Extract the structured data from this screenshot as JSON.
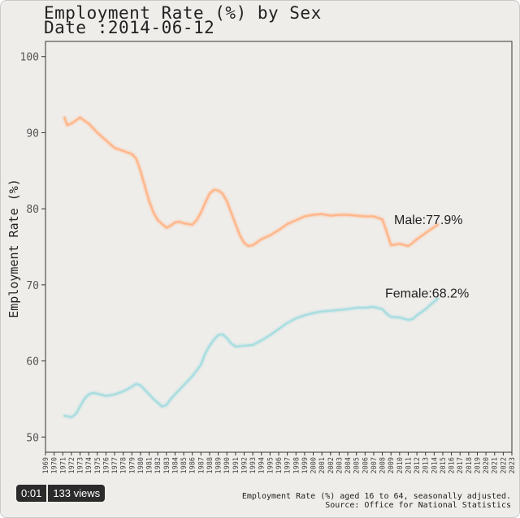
{
  "video": {
    "time": "0:01",
    "views": "133 views"
  },
  "footnote": {
    "line1": "Employment Rate (%) aged 16 to 64, seasonally adjusted.",
    "line2": "Source: Office for National Statistics"
  },
  "chart_data": {
    "type": "line",
    "title": "Employment Rate (%) by Sex",
    "subtitle": "Date :2014-06-12",
    "xlabel": "",
    "ylabel": "Employment Rate (%)",
    "xlim": [
      1969,
      2023
    ],
    "ylim": [
      48,
      102
    ],
    "yticks": [
      50,
      60,
      70,
      80,
      90,
      100
    ],
    "xticks": [
      "1969",
      "1970",
      "1971",
      "1972",
      "1973",
      "1974",
      "1975",
      "1976",
      "1977",
      "1978",
      "1979",
      "1980",
      "1981",
      "1982",
      "1983",
      "1984",
      "1985",
      "1986",
      "1987",
      "1988",
      "1989",
      "1990",
      "1991",
      "1992",
      "1993",
      "1994",
      "1995",
      "1996",
      "1997",
      "1998",
      "1999",
      "2000",
      "2001",
      "2002",
      "2003",
      "2004",
      "2005",
      "2006",
      "2007",
      "2008",
      "2009",
      "2010",
      "2011",
      "2012",
      "2013",
      "2014",
      "2015",
      "2016",
      "2017",
      "2018",
      "2019",
      "2020",
      "2021",
      "2022",
      "2023"
    ],
    "grid": false,
    "legend": "end-labels",
    "series": [
      {
        "name": "Male",
        "label": "Male:77.9%",
        "color": "#ffb68a",
        "x": [
          1971.2,
          1971.5,
          1972,
          1972.5,
          1973,
          1973.5,
          1974,
          1974.5,
          1975,
          1976,
          1977,
          1978,
          1979,
          1979.5,
          1980,
          1980.5,
          1981,
          1981.5,
          1982,
          1983,
          1983.5,
          1984,
          1984.5,
          1985,
          1986,
          1986.5,
          1987,
          1987.5,
          1988,
          1988.5,
          1989,
          1989.5,
          1990,
          1990.5,
          1991,
          1991.5,
          1992,
          1992.5,
          1993,
          1993.5,
          1994,
          1995,
          1996,
          1997,
          1998,
          1999,
          2000,
          2001,
          2002,
          2003,
          2004,
          2005,
          2006,
          2007,
          2008,
          2008.5,
          2009,
          2009.5,
          2010,
          2011,
          2011.5,
          2012,
          2013,
          2014.4
        ],
        "values": [
          92,
          91,
          91.2,
          91.6,
          92,
          91.6,
          91.2,
          90.6,
          90,
          89,
          88,
          87.6,
          87.2,
          86.6,
          85,
          83,
          81,
          79.5,
          78.5,
          77.5,
          77.8,
          78.2,
          78.3,
          78.1,
          77.9,
          78.5,
          79.5,
          80.8,
          82,
          82.5,
          82.4,
          82,
          81,
          79.5,
          78,
          76.5,
          75.5,
          75.1,
          75.2,
          75.6,
          76,
          76.5,
          77.2,
          78,
          78.5,
          79,
          79.2,
          79.3,
          79.1,
          79.2,
          79.2,
          79.1,
          79,
          79,
          78.6,
          77,
          75.2,
          75.3,
          75.4,
          75.1,
          75.5,
          76,
          76.8,
          77.9
        ]
      },
      {
        "name": "Female",
        "label": "Female:68.2%",
        "color": "#a8dde0",
        "x": [
          1971.2,
          1972,
          1972.5,
          1973,
          1973.5,
          1974,
          1974.5,
          1975,
          1976,
          1977,
          1978,
          1979,
          1979.5,
          1980,
          1980.5,
          1981,
          1981.5,
          1982,
          1982.5,
          1983,
          1983.5,
          1984,
          1985,
          1986,
          1987,
          1987.5,
          1988,
          1988.5,
          1989,
          1989.5,
          1990,
          1990.5,
          1991,
          1992,
          1993,
          1994,
          1995,
          1996,
          1997,
          1998,
          1999,
          2000,
          2001,
          2002,
          2003,
          2004,
          2005,
          2006,
          2007,
          2008,
          2008.5,
          2009,
          2010,
          2011,
          2011.5,
          2012,
          2013,
          2014.4
        ],
        "values": [
          52.8,
          52.6,
          53,
          54,
          55,
          55.6,
          55.8,
          55.7,
          55.4,
          55.6,
          56,
          56.6,
          57,
          56.8,
          56.2,
          55.6,
          55,
          54.5,
          54,
          54.2,
          55,
          55.6,
          56.8,
          58,
          59.5,
          61,
          62,
          62.8,
          63.4,
          63.5,
          63,
          62.3,
          61.9,
          62,
          62.1,
          62.7,
          63.4,
          64.2,
          65,
          65.6,
          66,
          66.3,
          66.5,
          66.6,
          66.7,
          66.8,
          67,
          67,
          67.1,
          66.8,
          66.2,
          65.8,
          65.7,
          65.4,
          65.5,
          66,
          66.8,
          68.2
        ]
      }
    ]
  }
}
